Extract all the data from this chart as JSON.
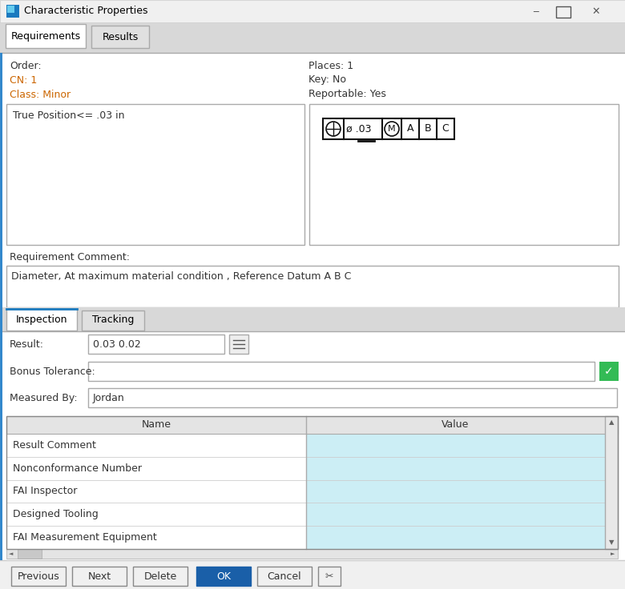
{
  "title": "Characteristic Properties",
  "bg_color": "#f0f0f0",
  "white": "#ffffff",
  "light_blue": "#cceef5",
  "tab_bg": "#d8d8d8",
  "border_color": "#aaaaaa",
  "border_dark": "#888888",
  "blue_text": "#cc6600",
  "cn_color": "#cc6600",
  "dark_text": "#333333",
  "green_check": "#33bb55",
  "ok_blue": "#1a5fa8",
  "titlebar_bg": "#f0f0f0",
  "tab_active_bg": "#ffffff",
  "tab_inactive_bg": "#e0e0e0",
  "inspection_tab_color": "#1a7abf",
  "tab1": "Requirements",
  "tab2": "Results",
  "order_label": "Order:",
  "cn_label": "CN: 1",
  "class_label": "Class: Minor",
  "places_label": "Places: 1",
  "key_label": "Key: No",
  "reportable_label": "Reportable: Yes",
  "true_pos": "True Position<= .03 in",
  "req_comment_label": "Requirement Comment:",
  "req_comment_text": "Diameter, At maximum material condition , Reference Datum A B C",
  "tab3": "Inspection",
  "tab4": "Tracking",
  "result_label": "Result:",
  "result_value": "0.03 0.02",
  "bonus_label": "Bonus Tolerance:",
  "measured_label": "Measured By:",
  "measured_value": "Jordan",
  "col_name": "Name",
  "col_value": "Value",
  "table_rows": [
    "Result Comment",
    "Nonconformance Number",
    "FAI Inspector",
    "Designed Tooling",
    "FAI Measurement Equipment"
  ],
  "btn_previous": "Previous",
  "btn_next": "Next",
  "btn_delete": "Delete",
  "btn_ok": "OK",
  "btn_cancel": "Cancel"
}
